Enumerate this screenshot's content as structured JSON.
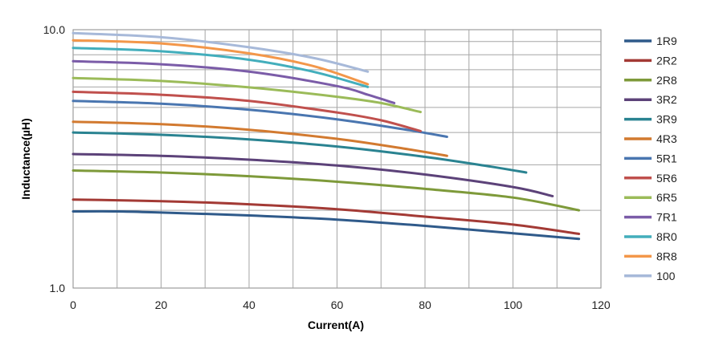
{
  "chart_data": {
    "type": "line",
    "xlabel": "Current(A)",
    "ylabel": "Inductance(µH)",
    "xlim": [
      0,
      120
    ],
    "ylim": [
      1.0,
      10.0
    ],
    "y_scale": "log",
    "grid": true,
    "legend_position": "right",
    "x_ticks": [
      "0",
      "20",
      "40",
      "60",
      "80",
      "100",
      "120"
    ],
    "y_ticks": [
      {
        "value": 1.0,
        "label": "1.0"
      },
      {
        "value": 10.0,
        "label": "10.0"
      }
    ],
    "series": [
      {
        "name": "1R9",
        "color": "#2f5a8a",
        "points": [
          [
            0,
            1.98
          ],
          [
            10,
            1.98
          ],
          [
            20,
            1.96
          ],
          [
            40,
            1.91
          ],
          [
            60,
            1.84
          ],
          [
            80,
            1.74
          ],
          [
            100,
            1.63
          ],
          [
            115,
            1.55
          ]
        ]
      },
      {
        "name": "2R2",
        "color": "#a33a35",
        "points": [
          [
            0,
            2.2
          ],
          [
            20,
            2.17
          ],
          [
            40,
            2.11
          ],
          [
            60,
            2.02
          ],
          [
            80,
            1.89
          ],
          [
            100,
            1.76
          ],
          [
            115,
            1.62
          ]
        ]
      },
      {
        "name": "2R8",
        "color": "#7e9a3a",
        "points": [
          [
            0,
            2.85
          ],
          [
            20,
            2.8
          ],
          [
            40,
            2.71
          ],
          [
            60,
            2.58
          ],
          [
            80,
            2.42
          ],
          [
            100,
            2.24
          ],
          [
            115,
            2.0
          ]
        ]
      },
      {
        "name": "3R2",
        "color": "#5c4279",
        "points": [
          [
            0,
            3.3
          ],
          [
            20,
            3.25
          ],
          [
            40,
            3.14
          ],
          [
            60,
            2.98
          ],
          [
            80,
            2.75
          ],
          [
            100,
            2.46
          ],
          [
            109,
            2.27
          ]
        ]
      },
      {
        "name": "3R9",
        "color": "#2a8391",
        "points": [
          [
            0,
            4.0
          ],
          [
            20,
            3.92
          ],
          [
            40,
            3.76
          ],
          [
            60,
            3.53
          ],
          [
            80,
            3.22
          ],
          [
            95,
            2.95
          ],
          [
            103,
            2.8
          ]
        ]
      },
      {
        "name": "4R3",
        "color": "#d27a30",
        "points": [
          [
            0,
            4.4
          ],
          [
            20,
            4.31
          ],
          [
            40,
            4.1
          ],
          [
            60,
            3.78
          ],
          [
            75,
            3.47
          ],
          [
            85,
            3.25
          ]
        ]
      },
      {
        "name": "5R1",
        "color": "#4a76b0",
        "points": [
          [
            0,
            5.3
          ],
          [
            20,
            5.17
          ],
          [
            40,
            4.9
          ],
          [
            60,
            4.5
          ],
          [
            75,
            4.12
          ],
          [
            85,
            3.85
          ]
        ]
      },
      {
        "name": "5R6",
        "color": "#c0504d",
        "points": [
          [
            0,
            5.75
          ],
          [
            20,
            5.6
          ],
          [
            40,
            5.3
          ],
          [
            60,
            4.78
          ],
          [
            70,
            4.46
          ],
          [
            79,
            4.05
          ]
        ]
      },
      {
        "name": "6R5",
        "color": "#9bbb59",
        "points": [
          [
            0,
            6.5
          ],
          [
            20,
            6.33
          ],
          [
            40,
            5.98
          ],
          [
            60,
            5.5
          ],
          [
            70,
            5.2
          ],
          [
            79,
            4.8
          ]
        ]
      },
      {
        "name": "7R1",
        "color": "#7b5ca8",
        "points": [
          [
            0,
            7.55
          ],
          [
            20,
            7.35
          ],
          [
            40,
            6.88
          ],
          [
            60,
            6.05
          ],
          [
            67,
            5.6
          ],
          [
            73,
            5.2
          ]
        ]
      },
      {
        "name": "8R0",
        "color": "#43aebc",
        "points": [
          [
            0,
            8.5
          ],
          [
            20,
            8.25
          ],
          [
            40,
            7.65
          ],
          [
            55,
            6.85
          ],
          [
            67,
            6.0
          ]
        ]
      },
      {
        "name": "8R8",
        "color": "#f3974a",
        "points": [
          [
            0,
            9.1
          ],
          [
            20,
            8.85
          ],
          [
            40,
            8.1
          ],
          [
            55,
            7.2
          ],
          [
            67,
            6.15
          ]
        ]
      },
      {
        "name": "100",
        "color": "#a7b9d9",
        "points": [
          [
            0,
            9.7
          ],
          [
            20,
            9.35
          ],
          [
            40,
            8.55
          ],
          [
            55,
            7.75
          ],
          [
            67,
            6.88
          ]
        ]
      }
    ]
  }
}
